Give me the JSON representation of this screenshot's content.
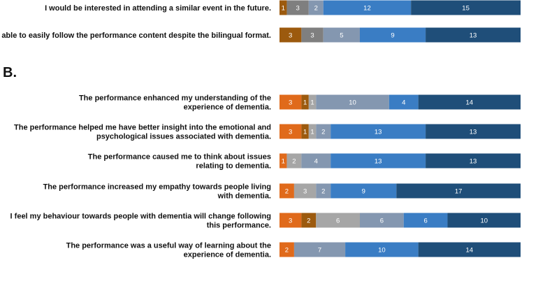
{
  "chart_data": [
    {
      "type": "bar",
      "orientation": "horizontal",
      "stacked": true,
      "title": "",
      "section_label": "",
      "categories": [
        "I would be interested in attending a similar event in the future.",
        "I was able to easily follow the performance content despite the bilingual format."
      ],
      "series": [
        {
          "name": "level-1",
          "color": "#c55a11",
          "values": [
            0,
            0
          ]
        },
        {
          "name": "level-2",
          "color": "#9c5a0e",
          "values": [
            1,
            3
          ]
        },
        {
          "name": "level-3",
          "color": "#7f7f7f",
          "values": [
            3,
            3
          ]
        },
        {
          "name": "level-4",
          "color": "#8497b0",
          "values": [
            2,
            5
          ]
        },
        {
          "name": "level-5",
          "color": "#3a7dc4",
          "values": [
            12,
            9
          ]
        },
        {
          "name": "level-6",
          "color": "#1f4e79",
          "values": [
            15,
            13
          ]
        }
      ],
      "xlim": [
        0,
        33
      ]
    },
    {
      "type": "bar",
      "orientation": "horizontal",
      "stacked": true,
      "title": "",
      "section_label": "B.",
      "categories": [
        "The performance enhanced my understanding of the experience of dementia.",
        "The performance helped me have better insight into the emotional and psychological issues associated with dementia.",
        "The performance caused me to think about issues relating to dementia.",
        "The performance increased my empathy towards people living with dementia.",
        "I feel my behaviour towards people with dementia will change following this performance.",
        "The performance was a useful way of learning about the experience of dementia."
      ],
      "category_lines": [
        [
          "The performance enhanced my understanding of the",
          "experience of dementia."
        ],
        [
          "The performance helped me have better insight into the emotional and",
          "psychological issues associated with dementia."
        ],
        [
          "The performance caused me to think about issues",
          "relating to dementia."
        ],
        [
          "The performance increased my empathy towards people living",
          "with dementia."
        ],
        [
          "I feel my behaviour towards people with dementia will change following",
          "this performance."
        ],
        [
          "The performance was a useful way of learning about the",
          "experience of dementia."
        ]
      ],
      "series": [
        {
          "name": "level-1",
          "color": "#e06a1b",
          "values": [
            3,
            3,
            1,
            2,
            3,
            2
          ]
        },
        {
          "name": "level-2",
          "color": "#9c5a0e",
          "values": [
            1,
            1,
            0,
            0,
            2,
            0
          ]
        },
        {
          "name": "level-3",
          "color": "#a6a6a6",
          "values": [
            1,
            1,
            2,
            3,
            6,
            0
          ]
        },
        {
          "name": "level-4",
          "color": "#8497b0",
          "values": [
            10,
            2,
            4,
            2,
            6,
            7
          ]
        },
        {
          "name": "level-5",
          "color": "#3a7dc4",
          "values": [
            4,
            13,
            13,
            9,
            6,
            10
          ]
        },
        {
          "name": "level-6",
          "color": "#1f4e79",
          "values": [
            14,
            13,
            13,
            17,
            10,
            14
          ]
        }
      ],
      "xlim": [
        0,
        33
      ]
    }
  ]
}
